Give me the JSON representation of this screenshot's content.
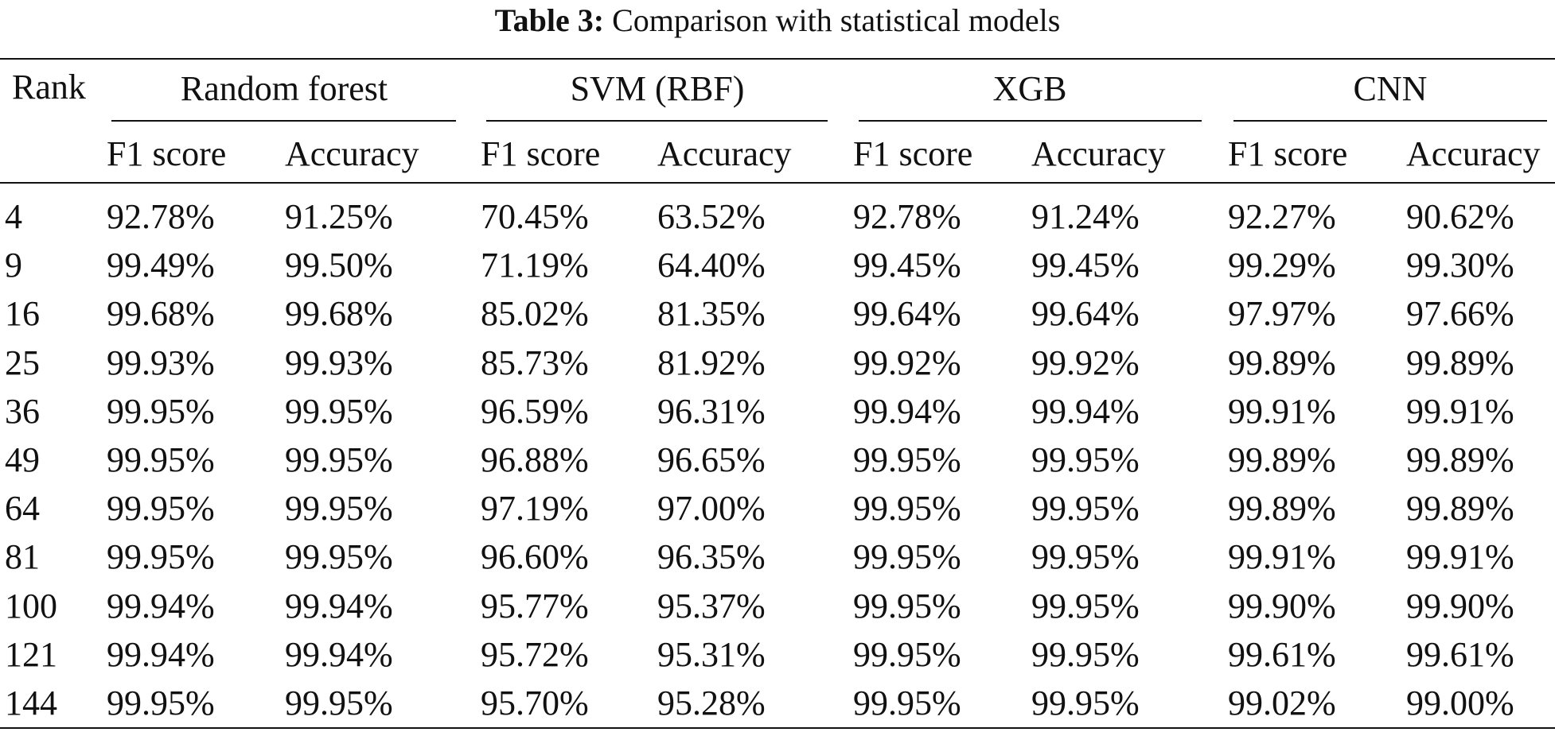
{
  "title": {
    "label": "Table 3:",
    "text": "Comparison with statistical models"
  },
  "table": {
    "rank_header": "Rank",
    "groups": [
      "Random forest",
      "SVM (RBF)",
      "XGB",
      "CNN"
    ],
    "subheaders": [
      "F1 score",
      "Accuracy",
      "F1 score",
      "Accuracy",
      "F1 score",
      "Accuracy",
      "F1 score",
      "Accuracy"
    ],
    "rows": [
      [
        "4",
        "92.78%",
        "91.25%",
        "70.45%",
        "63.52%",
        "92.78%",
        "91.24%",
        "92.27%",
        "90.62%"
      ],
      [
        "9",
        "99.49%",
        "99.50%",
        "71.19%",
        "64.40%",
        "99.45%",
        "99.45%",
        "99.29%",
        "99.30%"
      ],
      [
        "16",
        "99.68%",
        "99.68%",
        "85.02%",
        "81.35%",
        "99.64%",
        "99.64%",
        "97.97%",
        "97.66%"
      ],
      [
        "25",
        "99.93%",
        "99.93%",
        "85.73%",
        "81.92%",
        "99.92%",
        "99.92%",
        "99.89%",
        "99.89%"
      ],
      [
        "36",
        "99.95%",
        "99.95%",
        "96.59%",
        "96.31%",
        "99.94%",
        "99.94%",
        "99.91%",
        "99.91%"
      ],
      [
        "49",
        "99.95%",
        "99.95%",
        "96.88%",
        "96.65%",
        "99.95%",
        "99.95%",
        "99.89%",
        "99.89%"
      ],
      [
        "64",
        "99.95%",
        "99.95%",
        "97.19%",
        "97.00%",
        "99.95%",
        "99.95%",
        "99.89%",
        "99.89%"
      ],
      [
        "81",
        "99.95%",
        "99.95%",
        "96.60%",
        "96.35%",
        "99.95%",
        "99.95%",
        "99.91%",
        "99.91%"
      ],
      [
        "100",
        "99.94%",
        "99.94%",
        "95.77%",
        "95.37%",
        "99.95%",
        "99.95%",
        "99.90%",
        "99.90%"
      ],
      [
        "121",
        "99.94%",
        "99.94%",
        "95.72%",
        "95.31%",
        "99.95%",
        "99.95%",
        "99.61%",
        "99.61%"
      ],
      [
        "144",
        "99.95%",
        "99.95%",
        "95.70%",
        "95.28%",
        "99.95%",
        "99.95%",
        "99.02%",
        "99.00%"
      ]
    ]
  }
}
